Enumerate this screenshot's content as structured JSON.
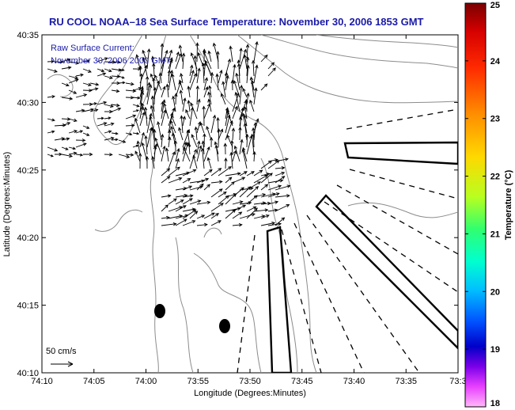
{
  "title": "RU COOL  NOAA–18  Sea Surface Temperature:  November 30, 2006 1853 GMT",
  "annotation": {
    "line1": "Raw Surface Current:",
    "line2": "November 30, 2006 2000 GMT"
  },
  "axes": {
    "xlabel": "Longitude (Degrees:Minutes)",
    "ylabel": "Latitude (Degrees:Minutes)",
    "x_ticks": [
      "74:10",
      "74:05",
      "74:00",
      "73:55",
      "73:50",
      "73:45",
      "73:40",
      "73:35",
      "73:3"
    ],
    "y_ticks": [
      "40:35",
      "40:30",
      "40:25",
      "40:20",
      "40:15",
      "40:10"
    ]
  },
  "scale_arrow": {
    "label": "50 cm/s"
  },
  "colorbar": {
    "label": "Temperature (°C)",
    "ticks": [
      "25",
      "24",
      "23",
      "22",
      "21",
      "20",
      "19",
      "18"
    ],
    "min": 18,
    "max": 25
  },
  "colors": {
    "title": "#1a1aa8",
    "annotation": "#1a1aa8",
    "contours": "#8c8c8c",
    "vectors": "#000000"
  }
}
